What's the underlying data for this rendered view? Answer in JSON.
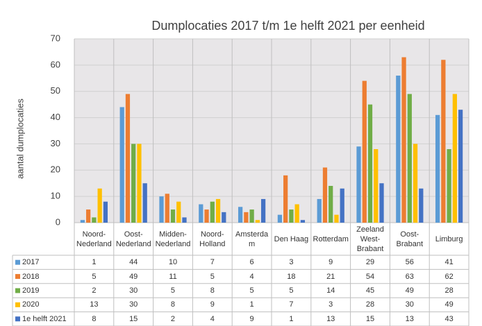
{
  "chart_data": {
    "type": "bar",
    "title": "Dumplocaties 2017 t/m 1e helft 2021 per eenheid",
    "y_label": "aantal dumplocaties",
    "categories": [
      "Noord-Nederland",
      "Oost-Nederland",
      "Midden-Nederland",
      "Noord-Holland",
      "Amsterdam",
      "Den Haag",
      "Rotterdam",
      "Zeeland West-Brabant",
      "Oost-Brabant",
      "Limburg"
    ],
    "series": [
      {
        "name": "2017",
        "color": "#5b9bd5",
        "values": [
          1,
          44,
          10,
          7,
          6,
          3,
          9,
          29,
          56,
          41
        ]
      },
      {
        "name": "2018",
        "color": "#ed7d31",
        "values": [
          5,
          49,
          11,
          5,
          4,
          18,
          21,
          54,
          63,
          62
        ]
      },
      {
        "name": "2019",
        "color": "#70ad47",
        "values": [
          2,
          30,
          5,
          8,
          5,
          5,
          14,
          45,
          49,
          28
        ]
      },
      {
        "name": "2020",
        "color": "#ffc000",
        "values": [
          13,
          30,
          8,
          9,
          1,
          7,
          3,
          28,
          30,
          49
        ]
      },
      {
        "name": "1e helft 2021",
        "color": "#4472c4",
        "values": [
          8,
          15,
          2,
          4,
          9,
          1,
          13,
          15,
          13,
          43
        ]
      }
    ],
    "ylim": [
      0,
      70
    ],
    "yticks": [
      0,
      10,
      20,
      30,
      40,
      50,
      60,
      70
    ],
    "grid": true
  }
}
